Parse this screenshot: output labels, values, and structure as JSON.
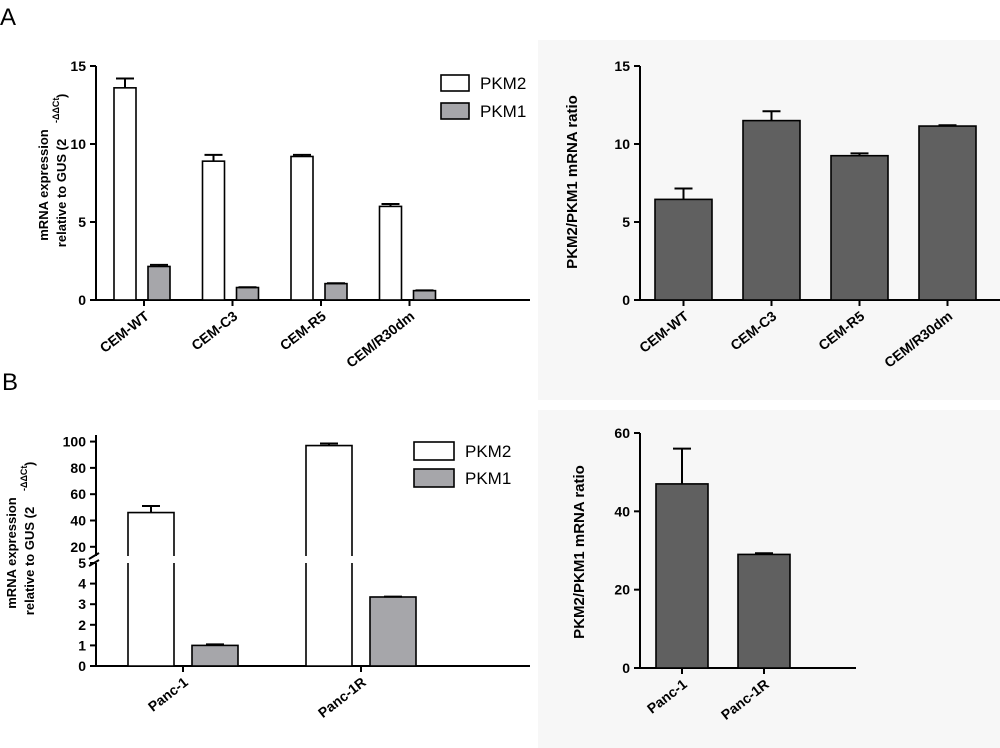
{
  "panels": {
    "a": "A",
    "b": "B"
  },
  "colors": {
    "pkm2": "#ffffff",
    "pkm1": "#a6a6aa",
    "ratio": "#606060",
    "stroke": "#000000"
  },
  "chart_data": [
    {
      "id": "A_left",
      "type": "bar",
      "categories": [
        "CEM-WT",
        "CEM-C3",
        "CEM-R5",
        "CEM/R30dm"
      ],
      "series": [
        {
          "name": "PKM2",
          "values": [
            13.6,
            8.9,
            9.2,
            6.0
          ],
          "errors": [
            0.6,
            0.4,
            0.1,
            0.15
          ]
        },
        {
          "name": "PKM1",
          "values": [
            2.15,
            0.8,
            1.05,
            0.6
          ],
          "errors": [
            0.1,
            0.02,
            0.02,
            0.02
          ]
        }
      ],
      "ylabel_line1": "mRNA expression",
      "ylabel_line2": "relative to GUS (2",
      "ylabel_sup": "-ΔΔCt",
      "ylabel_close": ")",
      "ylim": [
        0,
        15
      ],
      "yticks": [
        "0",
        "5",
        "10",
        "15"
      ],
      "legend_position": "top-right"
    },
    {
      "id": "A_right",
      "type": "bar",
      "categories": [
        "CEM-WT",
        "CEM-C3",
        "CEM-R5",
        "CEM/R30dm"
      ],
      "series": [
        {
          "name": "PKM2/PKM1",
          "values": [
            6.45,
            11.5,
            9.25,
            11.15
          ],
          "errors": [
            0.7,
            0.6,
            0.15,
            0.05
          ]
        }
      ],
      "ylabel": "PKM2/PKM1 mRNA ratio",
      "ylim": [
        0,
        15
      ],
      "yticks": [
        "0",
        "5",
        "10",
        "15"
      ]
    },
    {
      "id": "B_left",
      "type": "bar",
      "categories": [
        "Panc-1",
        "Panc-1R"
      ],
      "series": [
        {
          "name": "PKM2",
          "values": [
            46,
            97
          ],
          "errors": [
            5,
            1.5
          ]
        },
        {
          "name": "PKM1",
          "values": [
            1.0,
            3.35
          ],
          "errors": [
            0.05,
            0.02
          ]
        }
      ],
      "ylabel_line1": "mRNA expression",
      "ylabel_line2": "relative to GUS (2",
      "ylabel_sup": "-ΔΔCt",
      "ylabel_close": ")",
      "ylim_lower": [
        0,
        5
      ],
      "ylim_upper": [
        13,
        105
      ],
      "yticks_lower": [
        "0",
        "1",
        "2",
        "3",
        "4",
        "5"
      ],
      "yticks_upper": [
        "20",
        "40",
        "60",
        "80",
        "100"
      ],
      "broken_axis": true,
      "legend_position": "top-right"
    },
    {
      "id": "B_right",
      "type": "bar",
      "categories": [
        "Panc-1",
        "Panc-1R"
      ],
      "series": [
        {
          "name": "PKM2/PKM1",
          "values": [
            47,
            29
          ],
          "errors": [
            9,
            0.3
          ]
        }
      ],
      "ylabel": "PKM2/PKM1 mRNA ratio",
      "ylim": [
        0,
        60
      ],
      "yticks": [
        "0",
        "20",
        "40",
        "60"
      ]
    }
  ]
}
